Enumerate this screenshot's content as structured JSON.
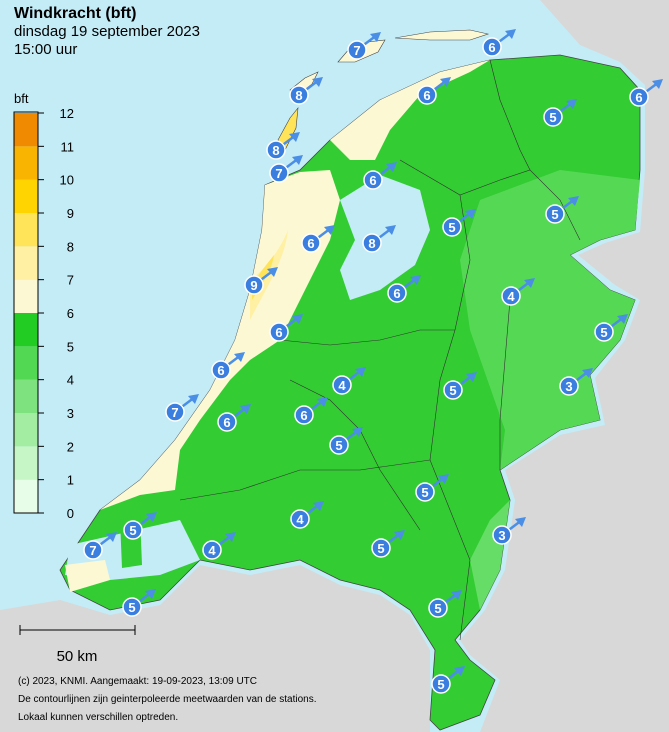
{
  "header": {
    "title": "Windkracht (bft)",
    "date": "dinsdag 19 september 2023",
    "time": "15:00 uur"
  },
  "legend": {
    "unit": "bft",
    "ticks": [
      0,
      1,
      2,
      3,
      4,
      5,
      6,
      7,
      8,
      9,
      10,
      11,
      12
    ],
    "colors": [
      "#e8fde8",
      "#c6f5c6",
      "#a2eda2",
      "#7ee27e",
      "#52d852",
      "#22cc22",
      "#fdf8d4",
      "#fff0a4",
      "#ffe45a",
      "#ffd400",
      "#f8b400",
      "#f08a00"
    ]
  },
  "stations": [
    {
      "value": 7
    },
    {
      "value": 6
    },
    {
      "value": 8
    },
    {
      "value": 6
    },
    {
      "value": 6
    },
    {
      "value": 5
    },
    {
      "value": 8
    },
    {
      "value": 7
    },
    {
      "value": 6
    },
    {
      "value": 5
    },
    {
      "value": 5
    },
    {
      "value": 6
    },
    {
      "value": 8
    },
    {
      "value": 9
    },
    {
      "value": 6
    },
    {
      "value": 4
    },
    {
      "value": 6
    },
    {
      "value": 5
    },
    {
      "value": 6
    },
    {
      "value": 4
    },
    {
      "value": 3
    },
    {
      "value": 5
    },
    {
      "value": 7
    },
    {
      "value": 6
    },
    {
      "value": 6
    },
    {
      "value": 5
    },
    {
      "value": 5
    },
    {
      "value": 4
    },
    {
      "value": 5
    },
    {
      "value": 3
    },
    {
      "value": 4
    },
    {
      "value": 5
    },
    {
      "value": 7
    },
    {
      "value": 5
    },
    {
      "value": 5
    },
    {
      "value": 5
    }
  ],
  "scale_bar": "50 km",
  "footer": [
    "(c) 2023, KNMI. Aangemaakt: 19-09-2023, 13:09 UTC",
    "De contourlijnen zijn geinterpoleerde meetwaarden van de stations.",
    "Lokaal kunnen verschillen optreden."
  ]
}
